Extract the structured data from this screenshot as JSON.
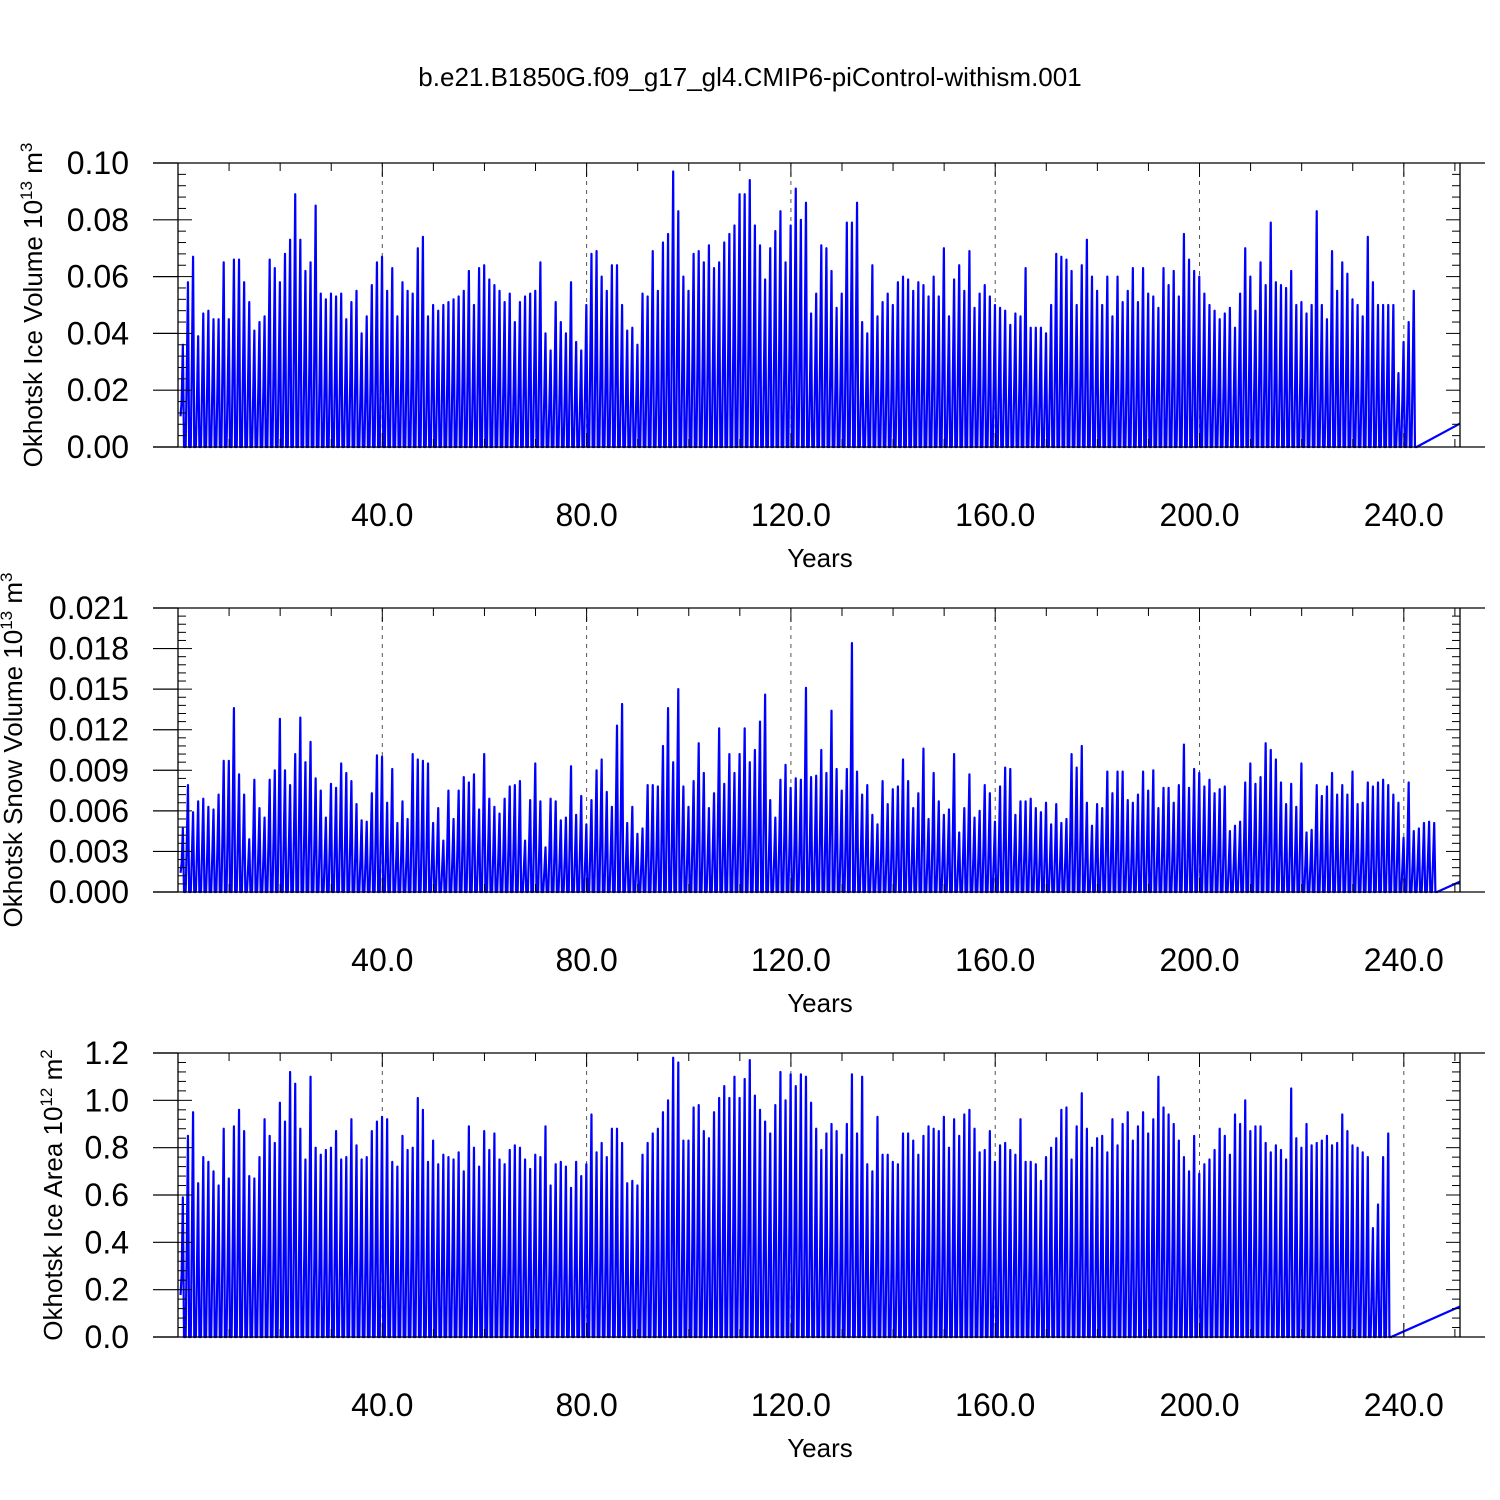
{
  "figure": {
    "title": "b.e21.B1850G.f09_g17_gl4.CMIP6-piControl-withism.001",
    "colors": {
      "series": "#0000ff",
      "axis": "#000000",
      "grid": "#555555",
      "background": "#ffffff"
    }
  },
  "chart_data": [
    {
      "type": "line",
      "title": "",
      "xlabel": "Years",
      "ylabel": {
        "text": "Okhotsk Ice Volume 10",
        "exponent": "13",
        "unit": " m",
        "unit_exponent": "3"
      },
      "xlim": [
        0,
        251
      ],
      "ylim": [
        0,
        0.1
      ],
      "x_ticks": [
        "40.0",
        "80.0",
        "120.0",
        "160.0",
        "200.0",
        "240.0"
      ],
      "y_ticks": [
        "0.00",
        "0.02",
        "0.04",
        "0.06",
        "0.08",
        "0.10"
      ],
      "grid": "vertical dashed at labeled x ticks",
      "seasonal_cycle": "annual maximum each year, returning to zero in summer",
      "series": [
        {
          "name": "",
          "color": "#0000ff",
          "x_start_year": 1,
          "annual_max": [
            0.036,
            0.058,
            0.067,
            0.039,
            0.047,
            0.048,
            0.045,
            0.045,
            0.065,
            0.045,
            0.066,
            0.066,
            0.058,
            0.051,
            0.041,
            0.044,
            0.046,
            0.066,
            0.063,
            0.058,
            0.068,
            0.073,
            0.089,
            0.073,
            0.062,
            0.065,
            0.085,
            0.054,
            0.052,
            0.054,
            0.053,
            0.054,
            0.045,
            0.051,
            0.055,
            0.04,
            0.046,
            0.057,
            0.065,
            0.067,
            0.055,
            0.063,
            0.046,
            0.058,
            0.055,
            0.054,
            0.07,
            0.074,
            0.046,
            0.05,
            0.048,
            0.05,
            0.051,
            0.052,
            0.053,
            0.055,
            0.062,
            0.05,
            0.063,
            0.064,
            0.059,
            0.057,
            0.055,
            0.051,
            0.054,
            0.044,
            0.051,
            0.053,
            0.054,
            0.055,
            0.065,
            0.04,
            0.034,
            0.051,
            0.044,
            0.04,
            0.058,
            0.037,
            0.034,
            0.05,
            0.068,
            0.069,
            0.06,
            0.055,
            0.064,
            0.064,
            0.05,
            0.041,
            0.042,
            0.036,
            0.054,
            0.053,
            0.069,
            0.055,
            0.072,
            0.075,
            0.097,
            0.083,
            0.06,
            0.055,
            0.068,
            0.069,
            0.065,
            0.071,
            0.063,
            0.065,
            0.072,
            0.075,
            0.078,
            0.089,
            0.089,
            0.094,
            0.078,
            0.071,
            0.059,
            0.07,
            0.076,
            0.083,
            0.065,
            0.078,
            0.091,
            0.08,
            0.086,
            0.047,
            0.054,
            0.071,
            0.07,
            0.062,
            0.049,
            0.054,
            0.079,
            0.079,
            0.086,
            0.044,
            0.04,
            0.064,
            0.046,
            0.051,
            0.054,
            0.05,
            0.058,
            0.06,
            0.059,
            0.055,
            0.058,
            0.057,
            0.053,
            0.06,
            0.053,
            0.07,
            0.046,
            0.059,
            0.064,
            0.055,
            0.069,
            0.049,
            0.054,
            0.057,
            0.053,
            0.05,
            0.049,
            0.048,
            0.043,
            0.047,
            0.046,
            0.063,
            0.042,
            0.042,
            0.042,
            0.04,
            0.05,
            0.068,
            0.067,
            0.066,
            0.062,
            0.05,
            0.064,
            0.073,
            0.06,
            0.055,
            0.05,
            0.06,
            0.046,
            0.06,
            0.051,
            0.055,
            0.063,
            0.051,
            0.063,
            0.054,
            0.053,
            0.049,
            0.063,
            0.057,
            0.062,
            0.053,
            0.075,
            0.066,
            0.062,
            0.06,
            0.054,
            0.05,
            0.048,
            0.045,
            0.047,
            0.049,
            0.042,
            0.054,
            0.07,
            0.06,
            0.048,
            0.065,
            0.057,
            0.079,
            0.058,
            0.057,
            0.056,
            0.062,
            0.05,
            0.051,
            0.047,
            0.05,
            0.083,
            0.05,
            0.045,
            0.069,
            0.055,
            0.065,
            0.061,
            0.052,
            0.05,
            0.046,
            0.074,
            0.058,
            0.05,
            0.05,
            0.05,
            0.05,
            0.026,
            0.037,
            0.044,
            0.055
          ]
        }
      ]
    },
    {
      "type": "line",
      "title": "",
      "xlabel": "Years",
      "ylabel": {
        "text": "Okhotsk Snow Volume 10",
        "exponent": "13",
        "unit": " m",
        "unit_exponent": "3"
      },
      "xlim": [
        0,
        251
      ],
      "ylim": [
        0,
        0.021
      ],
      "x_ticks": [
        "40.0",
        "80.0",
        "120.0",
        "160.0",
        "200.0",
        "240.0"
      ],
      "y_ticks": [
        "0.000",
        "0.003",
        "0.006",
        "0.009",
        "0.012",
        "0.015",
        "0.018",
        "0.021"
      ],
      "grid": "vertical dashed at labeled x ticks",
      "seasonal_cycle": "annual maximum each year, returning to zero in summer",
      "series": [
        {
          "name": "",
          "color": "#0000ff",
          "x_start_year": 1,
          "annual_max": [
            0.0047,
            0.0079,
            0.0059,
            0.0067,
            0.0069,
            0.0063,
            0.0061,
            0.0072,
            0.0097,
            0.0097,
            0.0136,
            0.0087,
            0.0072,
            0.0039,
            0.0083,
            0.0062,
            0.0055,
            0.0083,
            0.009,
            0.0128,
            0.009,
            0.0079,
            0.0102,
            0.0129,
            0.0096,
            0.0111,
            0.0084,
            0.0075,
            0.0055,
            0.008,
            0.0077,
            0.0095,
            0.0088,
            0.0082,
            0.0065,
            0.0053,
            0.0052,
            0.0073,
            0.0101,
            0.01,
            0.0066,
            0.0091,
            0.0051,
            0.0067,
            0.0054,
            0.0102,
            0.0098,
            0.0097,
            0.0095,
            0.0051,
            0.0062,
            0.0038,
            0.0075,
            0.0054,
            0.0075,
            0.0085,
            0.0081,
            0.0087,
            0.0061,
            0.0102,
            0.0069,
            0.0063,
            0.0058,
            0.0069,
            0.0078,
            0.0079,
            0.0082,
            0.0038,
            0.0068,
            0.0095,
            0.0067,
            0.0033,
            0.0069,
            0.0067,
            0.0053,
            0.0055,
            0.0093,
            0.0057,
            0.0071,
            0.005,
            0.0068,
            0.009,
            0.0098,
            0.0074,
            0.0063,
            0.0123,
            0.0139,
            0.0051,
            0.0063,
            0.0043,
            0.0047,
            0.0079,
            0.0079,
            0.0078,
            0.0108,
            0.0136,
            0.0096,
            0.015,
            0.0078,
            0.0063,
            0.0082,
            0.011,
            0.0088,
            0.0062,
            0.0073,
            0.0121,
            0.008,
            0.0102,
            0.0088,
            0.0102,
            0.0121,
            0.0096,
            0.0105,
            0.0126,
            0.0146,
            0.0068,
            0.0055,
            0.0083,
            0.0094,
            0.0077,
            0.0084,
            0.0083,
            0.0151,
            0.0085,
            0.0086,
            0.0105,
            0.0088,
            0.0134,
            0.0091,
            0.0075,
            0.0091,
            0.0184,
            0.0089,
            0.0072,
            0.0079,
            0.0057,
            0.005,
            0.0082,
            0.0065,
            0.0076,
            0.0078,
            0.0098,
            0.0082,
            0.0062,
            0.0073,
            0.0106,
            0.0054,
            0.0088,
            0.0067,
            0.0057,
            0.0061,
            0.0102,
            0.0044,
            0.0062,
            0.0087,
            0.0055,
            0.006,
            0.0079,
            0.0073,
            0.0052,
            0.0078,
            0.0092,
            0.0091,
            0.0057,
            0.0067,
            0.0067,
            0.0069,
            0.0062,
            0.0059,
            0.0066,
            0.005,
            0.0065,
            0.0051,
            0.0054,
            0.0102,
            0.0092,
            0.0108,
            0.0066,
            0.0049,
            0.0065,
            0.0062,
            0.0089,
            0.0073,
            0.0089,
            0.0089,
            0.0068,
            0.0066,
            0.0072,
            0.0089,
            0.0075,
            0.009,
            0.0062,
            0.0077,
            0.0077,
            0.0066,
            0.0079,
            0.0109,
            0.0077,
            0.0091,
            0.0088,
            0.0078,
            0.0083,
            0.0073,
            0.0076,
            0.0078,
            0.0045,
            0.0049,
            0.0052,
            0.0081,
            0.0095,
            0.008,
            0.0085,
            0.011,
            0.0105,
            0.0098,
            0.0081,
            0.0065,
            0.008,
            0.0063,
            0.0095,
            0.0044,
            0.0046,
            0.0079,
            0.0071,
            0.0078,
            0.0088,
            0.0072,
            0.0079,
            0.0072,
            0.0089,
            0.0065,
            0.0066,
            0.0081,
            0.0078,
            0.0081,
            0.0083,
            0.0079,
            0.0072,
            0.0066,
            0.004,
            0.0081,
            0.0045,
            0.0047,
            0.0051,
            0.0052,
            0.0051
          ]
        }
      ]
    },
    {
      "type": "line",
      "title": "",
      "xlabel": "Years",
      "ylabel": {
        "text": "Okhotsk Ice Area 10",
        "exponent": "12",
        "unit": " m",
        "unit_exponent": "2"
      },
      "xlim": [
        0,
        251
      ],
      "ylim": [
        0,
        1.2
      ],
      "x_ticks": [
        "40.0",
        "80.0",
        "120.0",
        "160.0",
        "200.0",
        "240.0"
      ],
      "y_ticks": [
        "0.0",
        "0.2",
        "0.4",
        "0.6",
        "0.8",
        "1.0",
        "1.2"
      ],
      "grid": "vertical dashed at labeled x ticks",
      "seasonal_cycle": "annual maximum each year, returning to zero in summer",
      "series": [
        {
          "name": "",
          "color": "#0000ff",
          "x_start_year": 1,
          "annual_max": [
            0.59,
            0.85,
            0.95,
            0.65,
            0.76,
            0.74,
            0.7,
            0.64,
            0.88,
            0.67,
            0.89,
            0.96,
            0.87,
            0.68,
            0.67,
            0.76,
            0.92,
            0.85,
            0.82,
            0.99,
            0.91,
            1.12,
            1.07,
            0.88,
            0.75,
            1.1,
            0.8,
            0.77,
            0.79,
            0.8,
            0.87,
            0.75,
            0.76,
            0.92,
            0.81,
            0.75,
            0.76,
            0.87,
            0.91,
            0.93,
            0.92,
            0.74,
            0.72,
            0.85,
            0.79,
            0.8,
            1.01,
            0.96,
            0.74,
            0.83,
            0.73,
            0.77,
            0.76,
            0.75,
            0.78,
            0.7,
            0.89,
            0.8,
            0.72,
            0.87,
            0.79,
            0.86,
            0.75,
            0.73,
            0.79,
            0.81,
            0.8,
            0.75,
            0.71,
            0.77,
            0.76,
            0.89,
            0.64,
            0.73,
            0.74,
            0.72,
            0.63,
            0.74,
            0.68,
            0.73,
            0.94,
            0.78,
            0.82,
            0.76,
            0.88,
            0.88,
            0.82,
            0.65,
            0.66,
            0.64,
            0.77,
            0.82,
            0.86,
            0.88,
            0.95,
            1.0,
            1.18,
            1.16,
            0.83,
            0.83,
            0.97,
            0.98,
            0.87,
            0.84,
            0.95,
            1.01,
            1.06,
            1.01,
            1.1,
            1.01,
            1.09,
            1.17,
            1.02,
            0.96,
            0.91,
            0.86,
            0.98,
            1.12,
            1.0,
            1.11,
            1.06,
            1.11,
            1.1,
            0.99,
            0.88,
            0.79,
            0.86,
            0.9,
            0.87,
            0.77,
            0.9,
            1.11,
            0.86,
            1.1,
            0.73,
            0.7,
            0.93,
            0.77,
            0.77,
            0.74,
            0.73,
            0.86,
            0.86,
            0.83,
            0.77,
            0.85,
            0.89,
            0.88,
            0.87,
            0.93,
            0.8,
            0.92,
            0.85,
            0.94,
            0.96,
            0.88,
            0.78,
            0.79,
            0.87,
            0.74,
            0.81,
            0.82,
            0.79,
            0.77,
            0.92,
            0.74,
            0.74,
            0.73,
            0.66,
            0.76,
            0.8,
            0.84,
            0.96,
            0.97,
            0.75,
            0.89,
            1.03,
            0.88,
            0.8,
            0.84,
            0.85,
            0.78,
            0.92,
            0.81,
            0.9,
            0.95,
            0.83,
            0.89,
            0.95,
            0.86,
            0.92,
            1.1,
            0.97,
            0.94,
            0.9,
            0.83,
            0.76,
            0.7,
            0.85,
            0.69,
            0.73,
            0.75,
            0.79,
            0.88,
            0.85,
            0.77,
            0.94,
            0.9,
            1.0,
            0.87,
            0.89,
            0.89,
            0.82,
            0.78,
            0.81,
            0.79,
            0.75,
            1.05,
            0.84,
            0.8,
            0.9,
            0.81,
            0.82,
            0.83,
            0.85,
            0.81,
            0.82,
            0.94,
            0.87,
            0.81,
            0.8,
            0.78,
            0.76,
            0.46,
            0.56,
            0.76,
            0.86
          ]
        }
      ]
    }
  ]
}
